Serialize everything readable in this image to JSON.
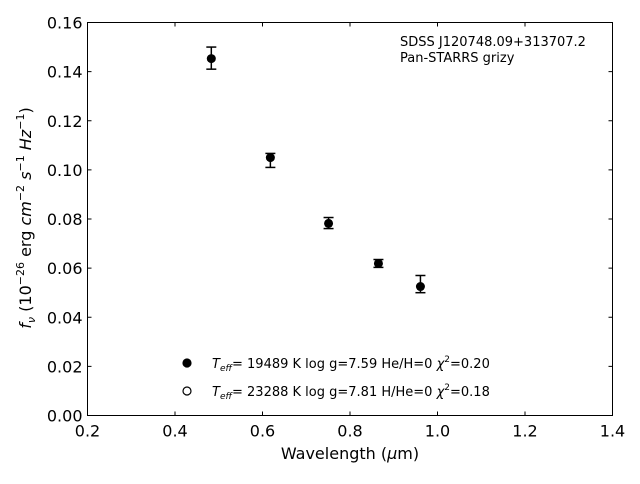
{
  "chart_data": {
    "type": "scatter",
    "title": "",
    "xlabel": "Wavelength (μm)",
    "ylabel": "f_ν (10^-26 erg cm^-2 s^-1 Hz^-1)",
    "xlim": [
      0.2,
      1.4
    ],
    "ylim": [
      0.0,
      0.16
    ],
    "xticks": [
      "0.2",
      "0.4",
      "0.6",
      "0.8",
      "1.0",
      "1.2",
      "1.4"
    ],
    "yticks": [
      "0.00",
      "0.02",
      "0.04",
      "0.06",
      "0.08",
      "0.10",
      "0.12",
      "0.14",
      "0.16"
    ],
    "grid": false,
    "annotation": [
      "SDSS J120748.09+313707.2",
      "Pan-STARRS grizy"
    ],
    "series": [
      {
        "name": "Pan-STARRS photometry",
        "x": [
          0.483,
          0.618,
          0.751,
          0.865,
          0.961
        ],
        "y": [
          0.1453,
          0.105,
          0.0782,
          0.0619,
          0.0525
        ],
        "yerr_low": [
          0.141,
          0.101,
          0.0761,
          0.0603,
          0.05
        ],
        "yerr_high": [
          0.15,
          0.1067,
          0.0806,
          0.0635,
          0.057
        ]
      }
    ],
    "legend": {
      "placement": "bottom-center",
      "entries": [
        {
          "marker": "filled-circle",
          "teff_label": "T",
          "teff_sub": "eff",
          "text": "= 19489 K  log g=7.59  He/H=0  ",
          "chi": "χ",
          "chi_sup": "2",
          "chi_val": "=0.20"
        },
        {
          "marker": "open-circle",
          "teff_label": "T",
          "teff_sub": "eff",
          "text": "= 23288 K  log g=7.81  H/He=0  ",
          "chi": "χ",
          "chi_sup": "2",
          "chi_val": "=0.18"
        }
      ]
    },
    "colors": {
      "marker": "#000000",
      "axes": "#000000"
    }
  }
}
